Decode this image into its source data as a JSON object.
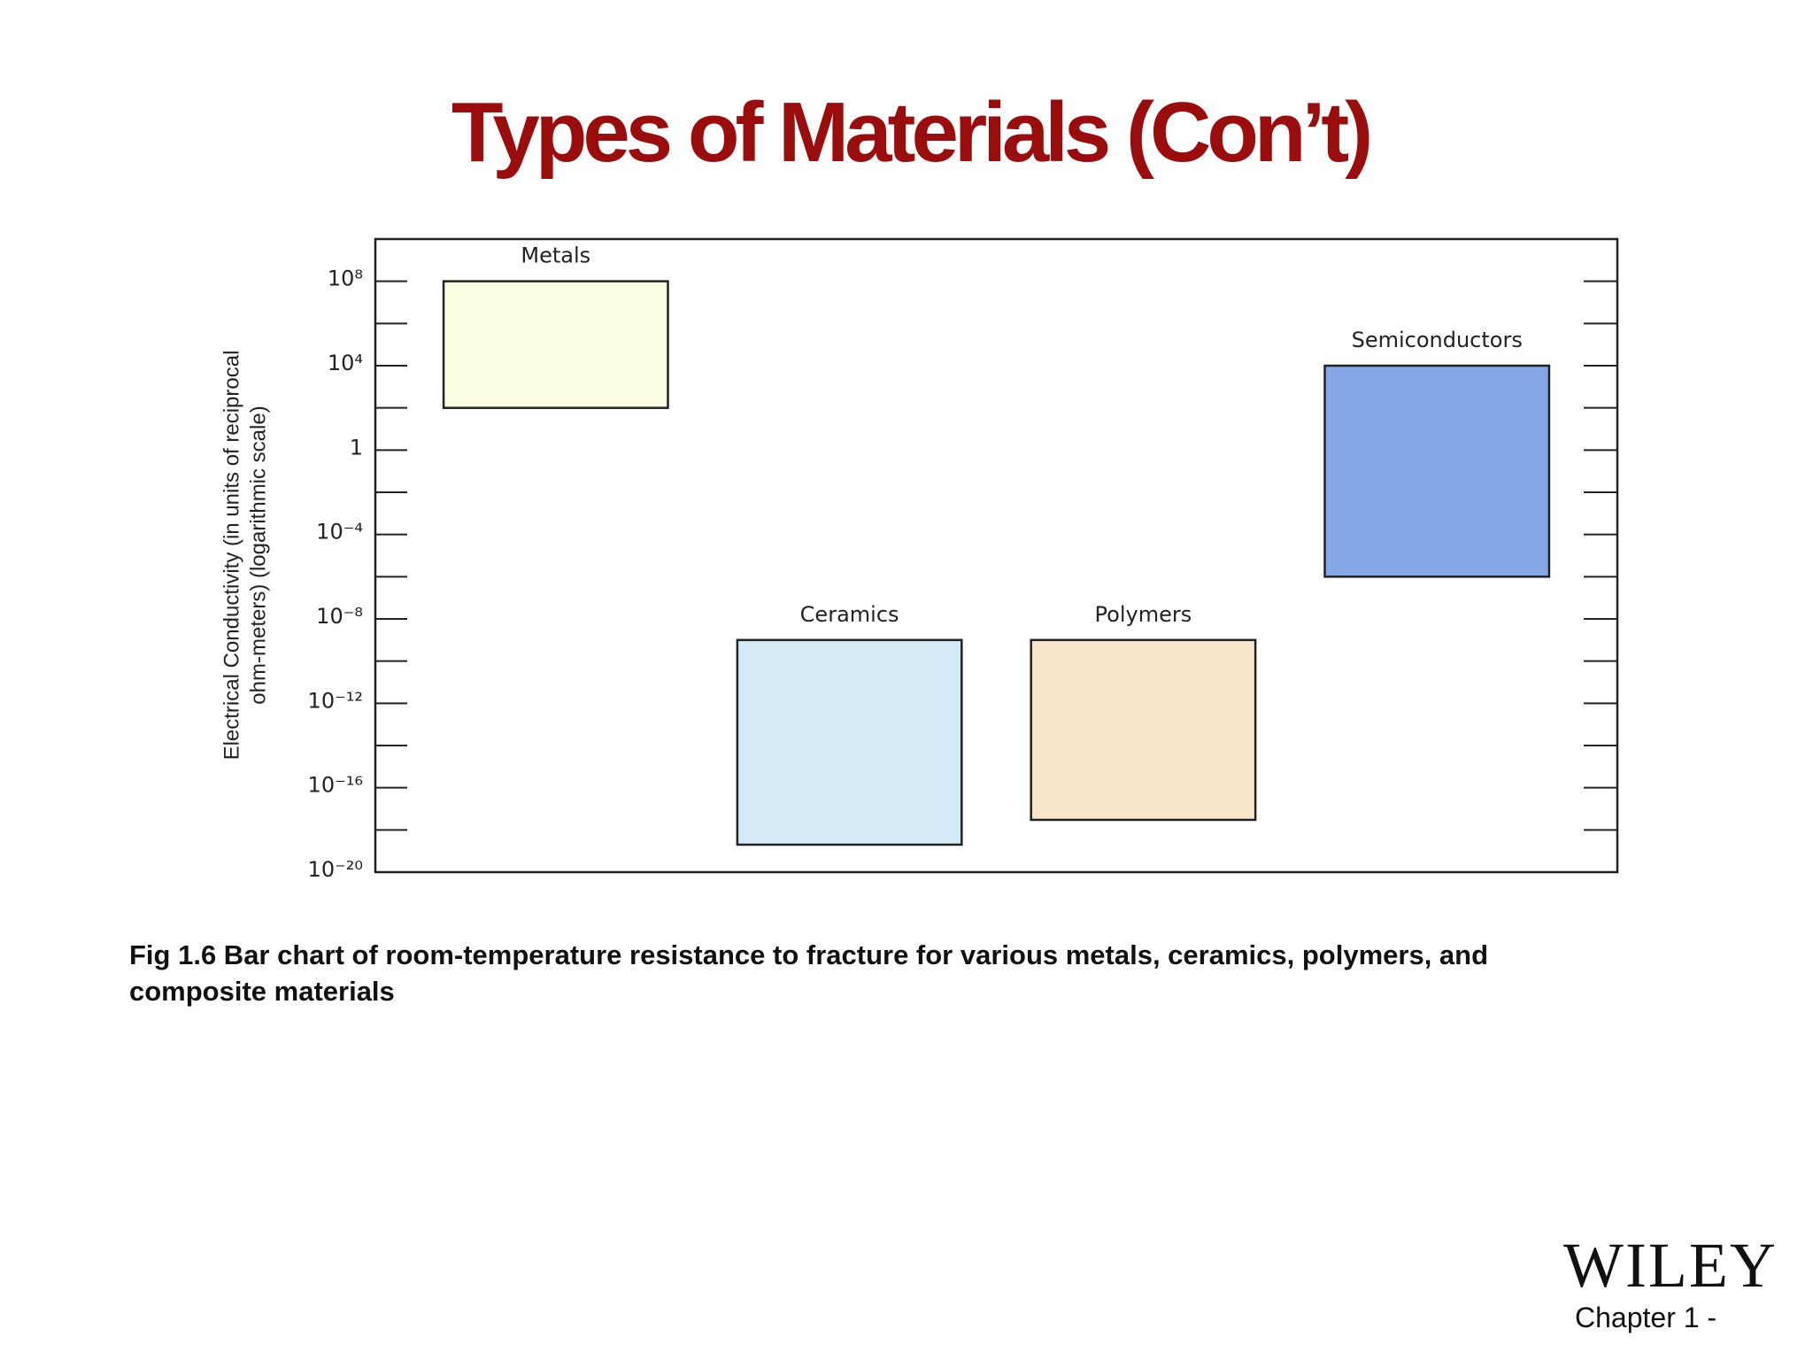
{
  "chart_data": {
    "type": "floating-bar",
    "title": "Types of Materials (Con’t)",
    "y_label": [
      "Electrical Conductivity (in units of reciprocal",
      "ohm-meters) (logarithmic scale)"
    ],
    "categories": [
      "Metals",
      "Ceramics",
      "Polymers",
      "Semiconductors"
    ],
    "high": [
      100000000.0,
      1e-09,
      1e-09,
      10000.0
    ],
    "low": [
      100.0,
      2e-19,
      3e-18,
      1e-06
    ],
    "colors": [
      "#fafde0",
      "#d4eaf7",
      "#f7e6ca",
      "#84a8e8"
    ],
    "log_scale": true,
    "ylim": [
      1e-20,
      10000000000.0
    ],
    "yticks": [
      {
        "value": 1e-20,
        "label": "10⁻²⁰"
      },
      {
        "value": 1e-16,
        "label": "10⁻¹⁶"
      },
      {
        "value": 1e-12,
        "label": "10⁻¹²"
      },
      {
        "value": 1e-08,
        "label": "10⁻⁸"
      },
      {
        "value": 0.0001,
        "label": "10⁻⁴"
      },
      1,
      {
        "value": 10000.0,
        "label": "10⁴"
      },
      {
        "value": 100000000.0,
        "label": "10⁸"
      }
    ],
    "minor_yticks": [
      1e-18,
      1e-14,
      1e-10,
      1e-06,
      0.01,
      100.0,
      1000000.0
    ],
    "caption": "Fig 1.6 Bar chart of room-temperature resistance to fracture for various metals, ceramics, polymers, and composite materials"
  },
  "footer": {
    "publisher": "WILEY",
    "chapter": "Chapter 1 -"
  }
}
